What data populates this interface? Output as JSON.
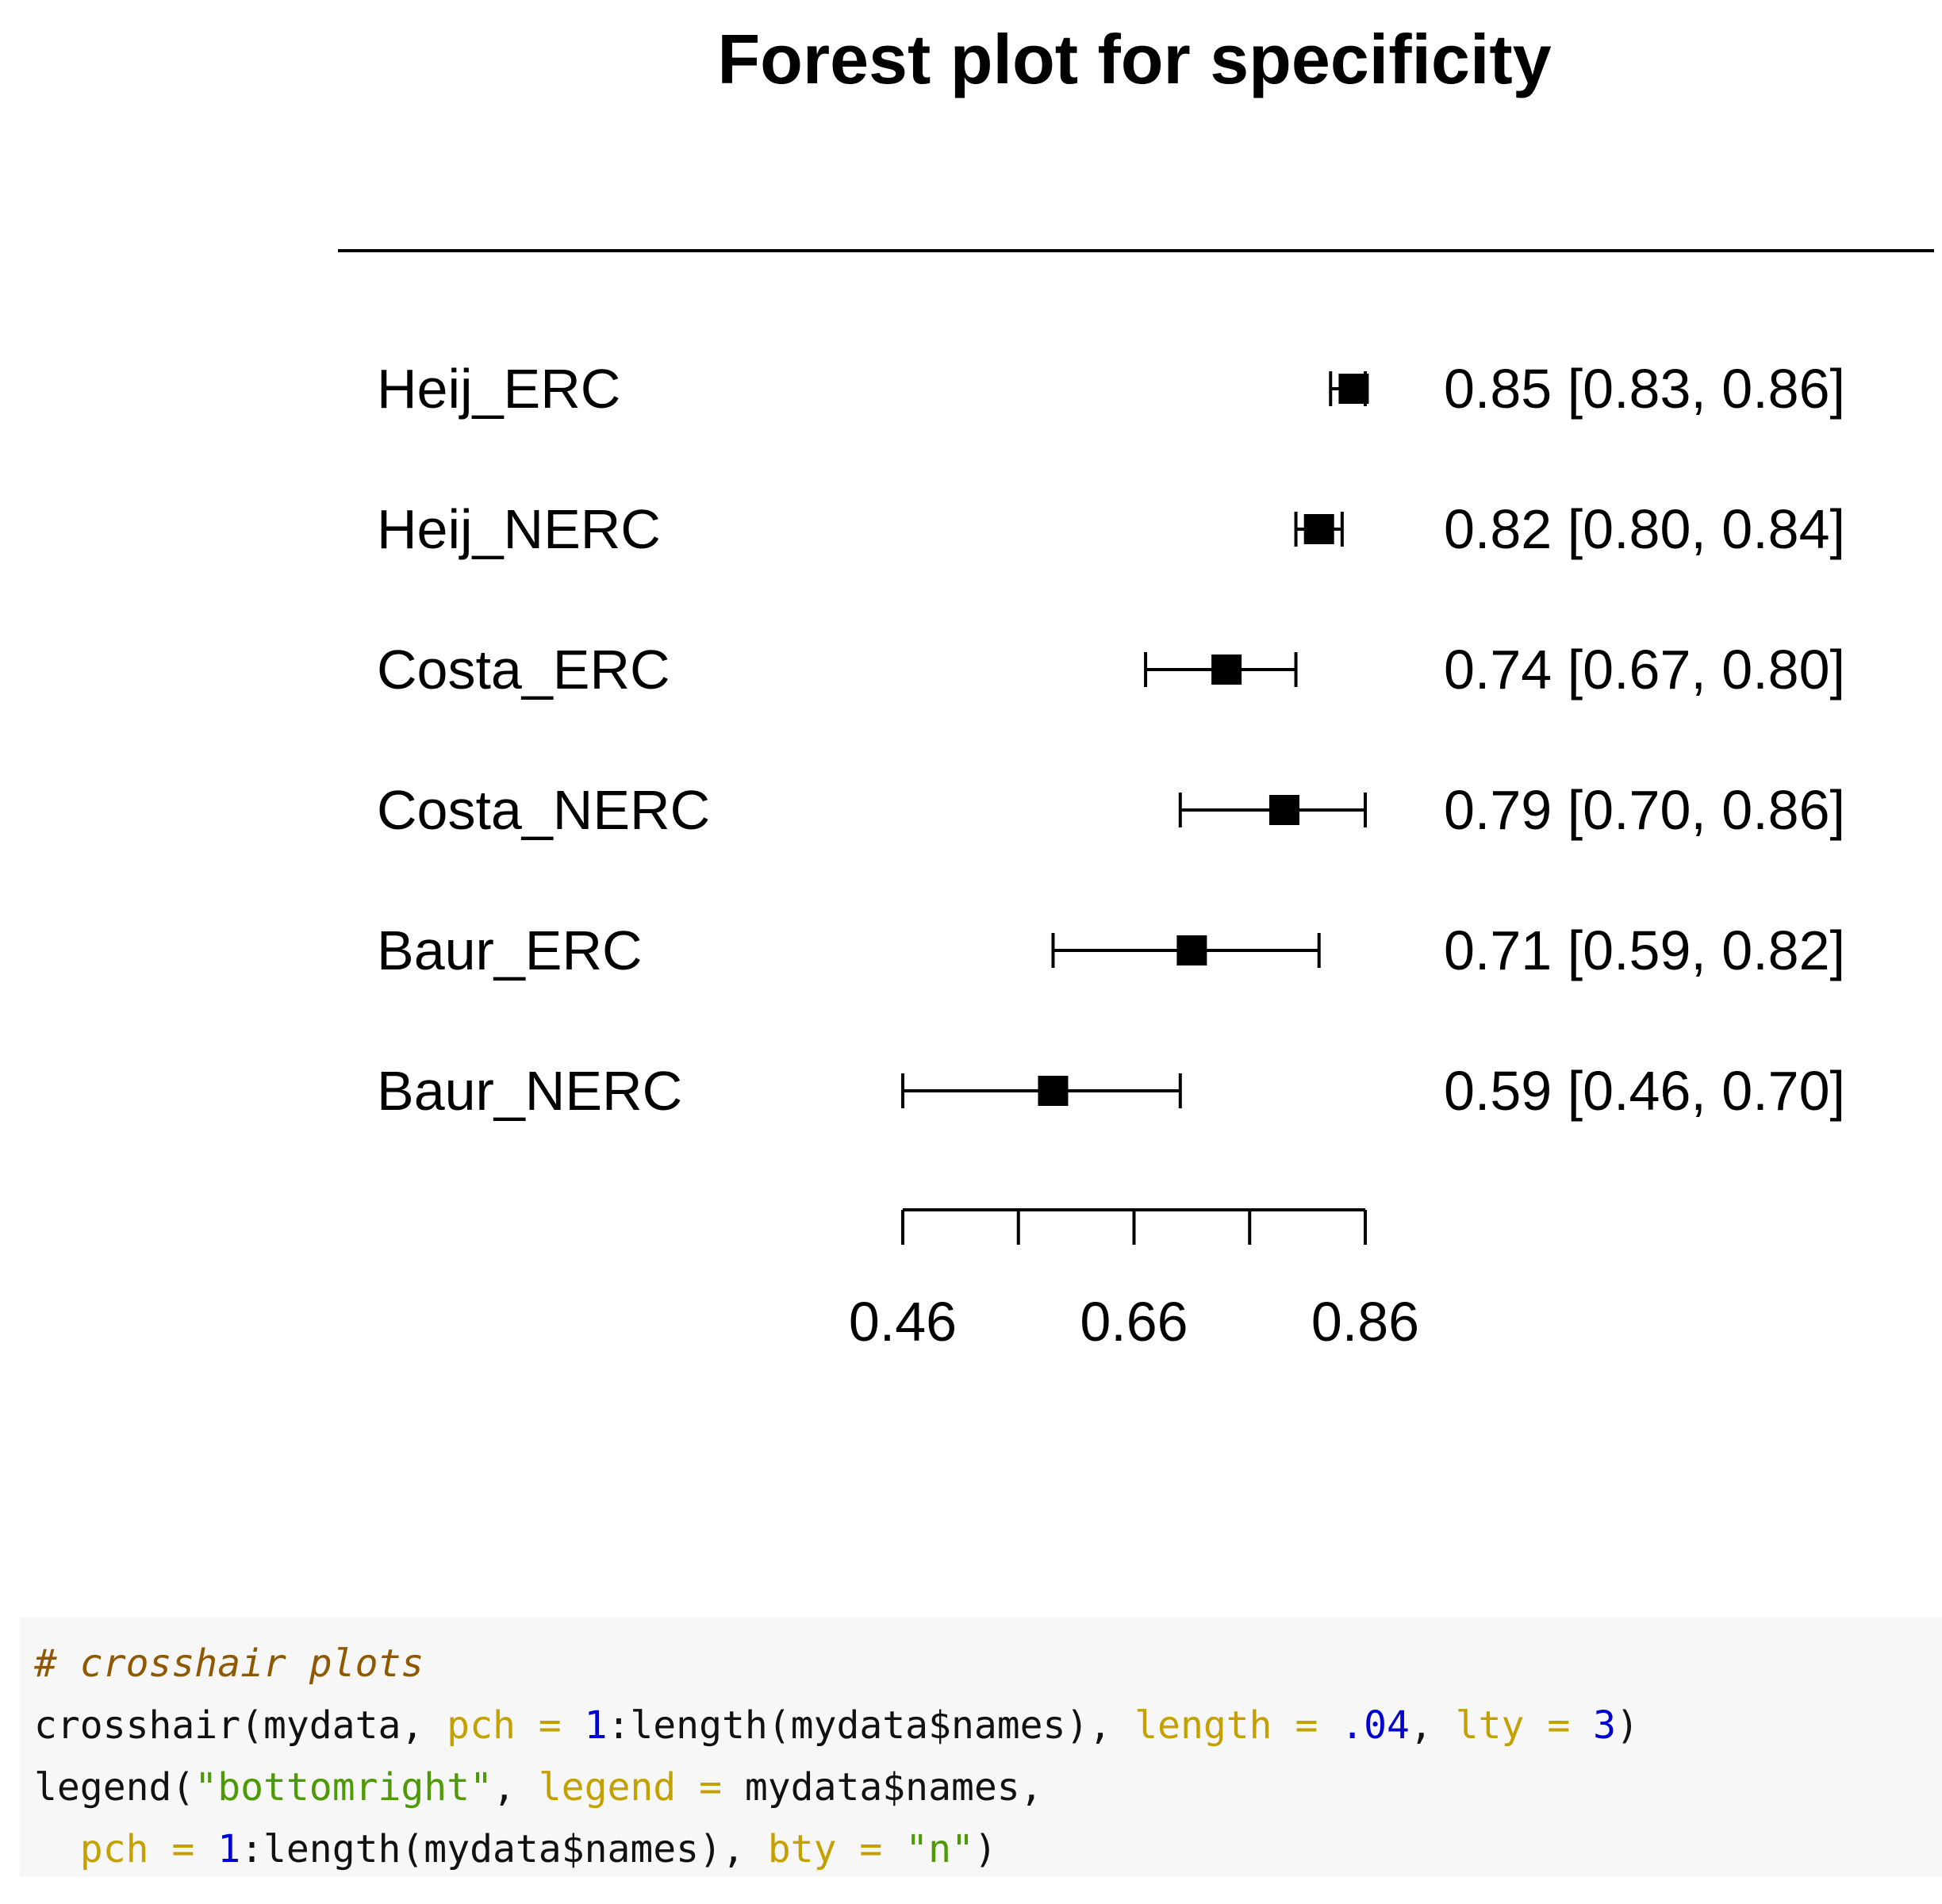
{
  "chart_data": {
    "type": "forest",
    "title": "Forest plot for specificity",
    "studies": [
      {
        "name": "Heij_ERC",
        "estimate": 0.85,
        "lower": 0.83,
        "upper": 0.86,
        "label": "0.85 [0.83, 0.86]"
      },
      {
        "name": "Heij_NERC",
        "estimate": 0.82,
        "lower": 0.8,
        "upper": 0.84,
        "label": "0.82 [0.80, 0.84]"
      },
      {
        "name": "Costa_ERC",
        "estimate": 0.74,
        "lower": 0.67,
        "upper": 0.8,
        "label": "0.74 [0.67, 0.80]"
      },
      {
        "name": "Costa_NERC",
        "estimate": 0.79,
        "lower": 0.7,
        "upper": 0.86,
        "label": "0.79 [0.70, 0.86]"
      },
      {
        "name": "Baur_ERC",
        "estimate": 0.71,
        "lower": 0.59,
        "upper": 0.82,
        "label": "0.71 [0.59, 0.82]"
      },
      {
        "name": "Baur_NERC",
        "estimate": 0.59,
        "lower": 0.46,
        "upper": 0.7,
        "label": "0.59 [0.46, 0.70]"
      }
    ],
    "x_axis": {
      "range": [
        0.46,
        0.86
      ],
      "ticks": [
        0.46,
        0.56,
        0.66,
        0.76,
        0.86
      ],
      "tick_labels": [
        {
          "value": 0.46,
          "label": "0.46"
        },
        {
          "value": 0.66,
          "label": "0.66"
        },
        {
          "value": 0.86,
          "label": "0.86"
        }
      ]
    },
    "colors": {
      "marks": "#000000",
      "background": "#ffffff"
    }
  },
  "code": {
    "lines": [
      [
        {
          "t": "# crosshair plots",
          "c": "#8f5902",
          "italic": true
        }
      ],
      [
        {
          "t": "crosshair(mydata, ",
          "c": "#111111"
        },
        {
          "t": "pch",
          "c": "#c4a000"
        },
        {
          "t": " = ",
          "c": "#c4a000"
        },
        {
          "t": "1",
          "c": "#0000cf"
        },
        {
          "t": ":length(mydata$names), ",
          "c": "#111111"
        },
        {
          "t": "length",
          "c": "#c4a000"
        },
        {
          "t": " = ",
          "c": "#c4a000"
        },
        {
          "t": ".04",
          "c": "#0000cf"
        },
        {
          "t": ", ",
          "c": "#111111"
        },
        {
          "t": "lty",
          "c": "#c4a000"
        },
        {
          "t": " = ",
          "c": "#c4a000"
        },
        {
          "t": "3",
          "c": "#0000cf"
        },
        {
          "t": ")",
          "c": "#111111"
        }
      ],
      [
        {
          "t": "legend(",
          "c": "#111111"
        },
        {
          "t": "\"bottomright\"",
          "c": "#4e9a06"
        },
        {
          "t": ", ",
          "c": "#111111"
        },
        {
          "t": "legend",
          "c": "#c4a000"
        },
        {
          "t": " = ",
          "c": "#c4a000"
        },
        {
          "t": "mydata$names,",
          "c": "#111111"
        }
      ],
      [
        {
          "t": "  ",
          "c": "#111111"
        },
        {
          "t": "pch",
          "c": "#c4a000"
        },
        {
          "t": " = ",
          "c": "#c4a000"
        },
        {
          "t": "1",
          "c": "#0000cf"
        },
        {
          "t": ":length(mydata$names), ",
          "c": "#111111"
        },
        {
          "t": "bty",
          "c": "#c4a000"
        },
        {
          "t": " = ",
          "c": "#c4a000"
        },
        {
          "t": "\"n\"",
          "c": "#4e9a06"
        },
        {
          "t": ")",
          "c": "#111111"
        }
      ]
    ]
  }
}
